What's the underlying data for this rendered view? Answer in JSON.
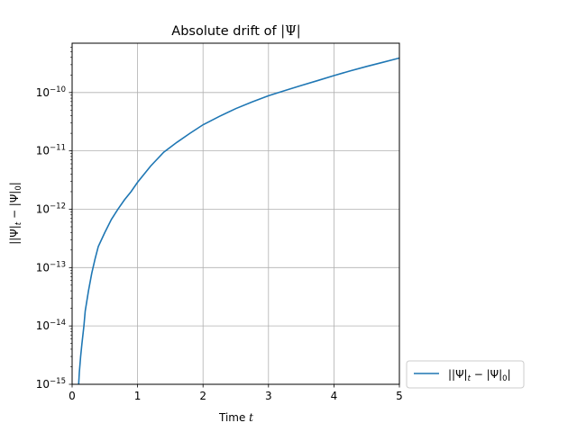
{
  "chart_data": {
    "type": "line",
    "title": "Absolute drift of |Ψ|",
    "xlabel": "Time t",
    "ylabel": "||Ψ|t − |Ψ|0|",
    "xlim": [
      0,
      5
    ],
    "ylim": [
      1e-15,
      7e-10
    ],
    "yscale": "log",
    "grid": true,
    "legend_placement": "outside-bottom-right",
    "x_ticks": [
      {
        "value": 0,
        "label": "0"
      },
      {
        "value": 1,
        "label": "1"
      },
      {
        "value": 2,
        "label": "2"
      },
      {
        "value": 3,
        "label": "3"
      },
      {
        "value": 4,
        "label": "4"
      },
      {
        "value": 5,
        "label": "5"
      }
    ],
    "y_ticks": [
      {
        "value": 1e-15,
        "base": "10",
        "exp": "−15"
      },
      {
        "value": 1e-14,
        "base": "10",
        "exp": "−14"
      },
      {
        "value": 1e-13,
        "base": "10",
        "exp": "−13"
      },
      {
        "value": 1e-12,
        "base": "10",
        "exp": "−12"
      },
      {
        "value": 1e-11,
        "base": "10",
        "exp": "−11"
      },
      {
        "value": 1e-10,
        "base": "10",
        "exp": "−10"
      }
    ],
    "series": [
      {
        "name": "||Ψ|t − |Ψ|0|",
        "color": "#1f77b4",
        "x": [
          0.1,
          0.11,
          0.13,
          0.15,
          0.18,
          0.2,
          0.25,
          0.3,
          0.35,
          0.4,
          0.5,
          0.6,
          0.7,
          0.8,
          0.9,
          1.0,
          1.2,
          1.4,
          1.6,
          1.8,
          2.0,
          2.25,
          2.5,
          2.75,
          3.0,
          3.25,
          3.5,
          3.75,
          4.0,
          4.25,
          4.5,
          4.75,
          5.0
        ],
        "y": [
          1e-15,
          1.6e-15,
          3e-15,
          5e-15,
          1e-14,
          1.8e-14,
          4e-14,
          8e-14,
          1.4e-13,
          2.3e-13,
          4e-13,
          6.7e-13,
          1e-12,
          1.45e-12,
          2e-12,
          2.9e-12,
          5.5e-12,
          9.5e-12,
          1.4e-11,
          2e-11,
          2.8e-11,
          3.9e-11,
          5.3e-11,
          6.9e-11,
          8.8e-11,
          1.08e-10,
          1.32e-10,
          1.6e-10,
          1.95e-10,
          2.35e-10,
          2.8e-10,
          3.3e-10,
          3.9e-10
        ]
      }
    ]
  },
  "title_parts": {
    "pre": "Absolute drift of ",
    "sym": "|Ψ|"
  },
  "xlabel_parts": {
    "pre": "Time ",
    "var": "t"
  },
  "label_parts": {
    "a": "||Ψ|",
    "sub_t": "t",
    "minus": " − |Ψ|",
    "sub_0": "0",
    "end": "|"
  }
}
